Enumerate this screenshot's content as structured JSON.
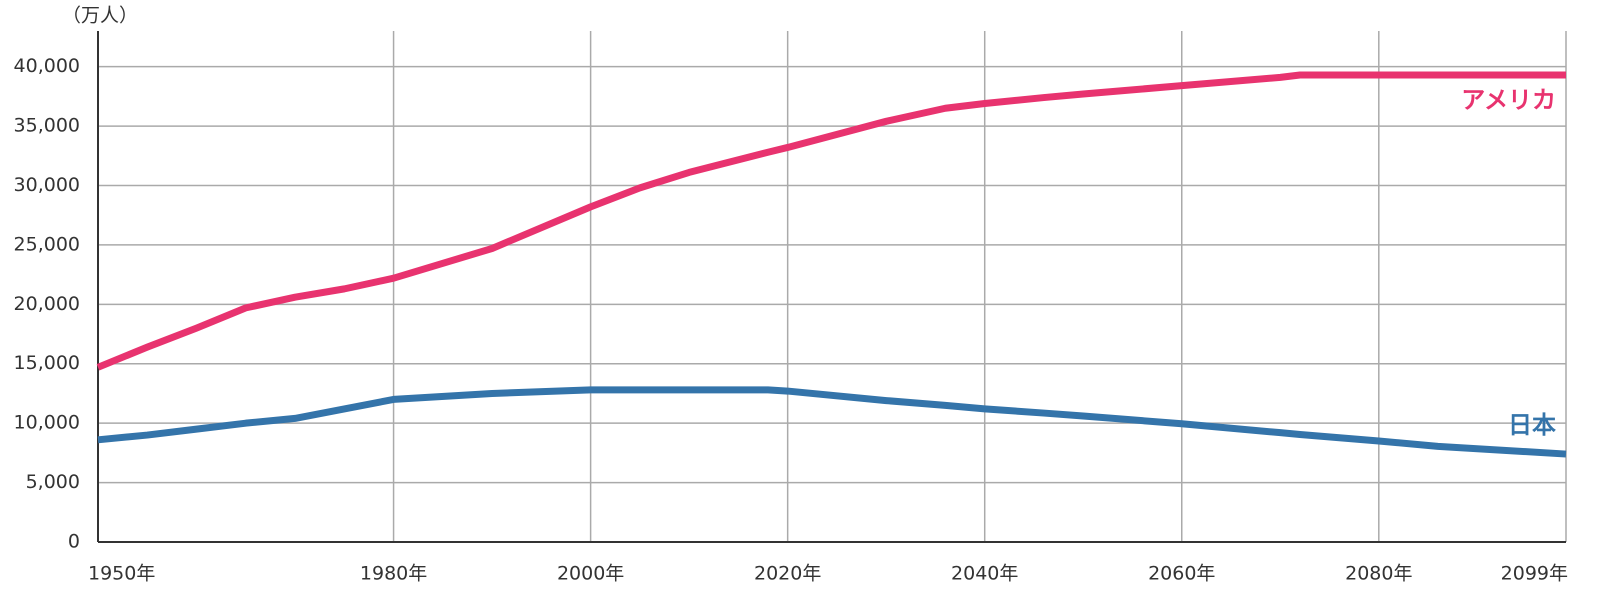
{
  "chart_data": {
    "type": "line",
    "y_label": "（万人）",
    "x": [
      1950,
      1955,
      1960,
      1965,
      1970,
      1975,
      1980,
      1990,
      2000,
      2005,
      2010,
      2018,
      2020,
      2030,
      2036,
      2040,
      2046,
      2050,
      2060,
      2070,
      2072,
      2080,
      2086,
      2099
    ],
    "series": [
      {
        "name": "アメリカ",
        "color": "#e8336f",
        "values": [
          14700,
          16400,
          18000,
          19700,
          20600,
          21300,
          22200,
          24700,
          28200,
          29800,
          31100,
          32800,
          33200,
          35400,
          36500,
          36900,
          37400,
          37700,
          38400,
          39100,
          39300,
          39300,
          39300,
          39300
        ]
      },
      {
        "name": "日本",
        "color": "#3474aa",
        "values": [
          8600,
          9000,
          9500,
          10000,
          10400,
          11200,
          12000,
          12500,
          12800,
          12800,
          12800,
          12800,
          12700,
          11900,
          11500,
          11200,
          10850,
          10600,
          9950,
          9200,
          9050,
          8500,
          8050,
          7400
        ]
      }
    ],
    "xlim": [
      1950,
      2099
    ],
    "xticks": [
      {
        "value": 1950,
        "label": "1950年"
      },
      {
        "value": 1980,
        "label": "1980年"
      },
      {
        "value": 2000,
        "label": "2000年"
      },
      {
        "value": 2020,
        "label": "2020年"
      },
      {
        "value": 2040,
        "label": "2040年"
      },
      {
        "value": 2060,
        "label": "2060年"
      },
      {
        "value": 2080,
        "label": "2080年"
      },
      {
        "value": 2099,
        "label": "2099年"
      }
    ],
    "ylim": [
      0,
      43000
    ],
    "yticks": [
      0,
      {
        "value": 5000,
        "label": "5,000"
      },
      {
        "value": 10000,
        "label": "10,000"
      },
      {
        "value": 15000,
        "label": "15,000"
      },
      {
        "value": 20000,
        "label": "20,000"
      },
      {
        "value": 25000,
        "label": "25,000"
      },
      {
        "value": 30000,
        "label": "30,000"
      },
      {
        "value": 35000,
        "label": "35,000"
      },
      {
        "value": 40000,
        "label": "40,000"
      }
    ],
    "grid": true
  }
}
